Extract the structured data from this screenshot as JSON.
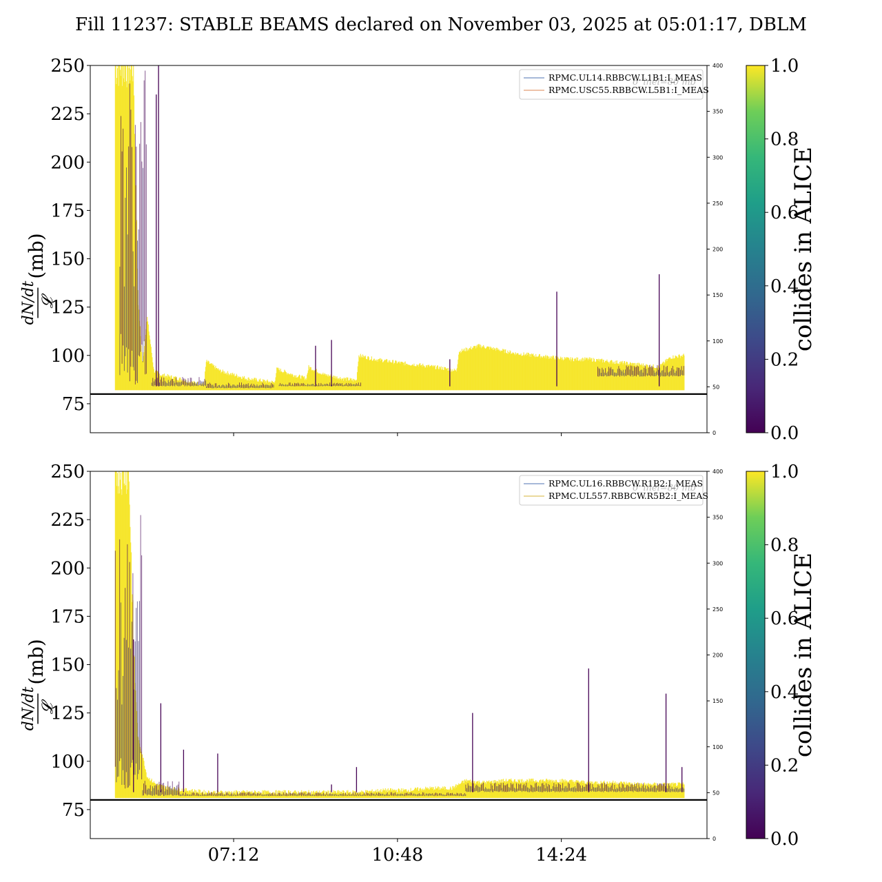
{
  "figure": {
    "title": "Fill 11237: STABLE BEAMS declared on November 03, 2025 at 05:01:17, DBLM"
  },
  "colors": {
    "threshold_line": "#000000",
    "legend_series_1": "#4c72b0",
    "legend_series_2": "#dd8452",
    "viridis": [
      "#440154",
      "#3b528b",
      "#21918c",
      "#5ec962",
      "#fde725"
    ]
  },
  "chart_data": [
    {
      "type": "line",
      "panel": "top",
      "ylabel_fraction_top": "dN/dt",
      "ylabel_fraction_bottom": "𝓛",
      "ylabel_unit": "(mb)",
      "ylim": [
        60,
        250
      ],
      "yticks": [
        75,
        100,
        125,
        150,
        175,
        200,
        225,
        250
      ],
      "ylim_right": [
        0,
        400
      ],
      "yticks_right": [
        0,
        50,
        100,
        150,
        200,
        250,
        300,
        350,
        400
      ],
      "xlim_hours": [
        4.05,
        17.6
      ],
      "xticks": [
        {
          "hour": 7.2,
          "label": "07:12"
        },
        {
          "hour": 10.8,
          "label": "10:48"
        },
        {
          "hour": 14.4,
          "label": "14:24"
        }
      ],
      "show_xtick_labels": false,
      "threshold": 80,
      "legend": [
        "RPMC.UL14.RBBCW.L1B1:I_MEAS",
        "RPMC.USC55.RBBCW.L5B1:I_MEAS"
      ],
      "legend_placement": "top-right",
      "legend_ghost_text": "σ_inel=80 mb",
      "colorbar": {
        "label": "collides in ALICE",
        "range": [
          0.0,
          1.0
        ],
        "ticks": [
          "0.0",
          "0.2",
          "0.4",
          "0.6",
          "0.8",
          "1.0"
        ]
      },
      "envelope": {
        "x": [
          4.6,
          4.7,
          4.8,
          4.9,
          5.0,
          5.1,
          5.2,
          5.3,
          5.45,
          5.6,
          5.8,
          6.0,
          6.3,
          6.55,
          6.6,
          6.9,
          7.2,
          7.5,
          7.8,
          8.1,
          8.15,
          8.5,
          8.8,
          8.85,
          9.2,
          9.6,
          9.9,
          9.95,
          10.3,
          10.6,
          10.9,
          11.3,
          11.6,
          11.9,
          12.1,
          12.15,
          12.6,
          13.0,
          13.4,
          13.8,
          14.2,
          14.6,
          15.0,
          15.4,
          15.8,
          16.2,
          16.55,
          16.8,
          17.1
        ],
        "ymax": [
          250,
          250,
          250,
          250,
          250,
          130,
          95,
          120,
          92,
          90,
          89,
          88,
          86,
          85,
          97,
          92,
          90,
          88,
          87,
          86,
          93,
          90,
          88,
          94,
          90,
          88,
          87,
          100,
          98,
          97,
          96,
          95,
          94,
          93,
          92,
          102,
          105,
          103,
          101,
          100,
          99,
          98,
          98,
          97,
          96,
          95,
          94,
          99,
          100
        ],
        "ymin": [
          82,
          82,
          82,
          82,
          82,
          82,
          82,
          82,
          82,
          82,
          82,
          82,
          82,
          82,
          82,
          82,
          82,
          82,
          82,
          82,
          82,
          82,
          82,
          82,
          82,
          82,
          82,
          82,
          82,
          82,
          82,
          82,
          82,
          82,
          82,
          82,
          82,
          82,
          82,
          82,
          82,
          82,
          82,
          82,
          82,
          82,
          82,
          82,
          82
        ],
        "purple_band": [
          [
            4.7,
            5.3,
            84,
            250
          ],
          [
            5.4,
            6.6,
            84,
            89
          ],
          [
            6.6,
            8.1,
            83,
            86
          ],
          [
            8.2,
            10.0,
            84,
            86
          ],
          [
            15.2,
            17.1,
            89,
            95
          ]
        ]
      },
      "spikes": [
        {
          "x": 5.55,
          "y": 250
        },
        {
          "x": 5.5,
          "y": 235
        },
        {
          "x": 9.0,
          "y": 105
        },
        {
          "x": 9.35,
          "y": 108
        },
        {
          "x": 11.95,
          "y": 98
        },
        {
          "x": 14.3,
          "y": 133
        },
        {
          "x": 16.55,
          "y": 142
        }
      ]
    },
    {
      "type": "line",
      "panel": "bottom",
      "ylabel_fraction_top": "dN/dt",
      "ylabel_fraction_bottom": "𝓛",
      "ylabel_unit": "(mb)",
      "ylim": [
        60,
        250
      ],
      "yticks": [
        75,
        100,
        125,
        150,
        175,
        200,
        225,
        250
      ],
      "ylim_right": [
        0,
        400
      ],
      "yticks_right": [
        0,
        50,
        100,
        150,
        200,
        250,
        300,
        350,
        400
      ],
      "xlim_hours": [
        4.05,
        17.6
      ],
      "xticks": [
        {
          "hour": 7.2,
          "label": "07:12"
        },
        {
          "hour": 10.8,
          "label": "10:48"
        },
        {
          "hour": 14.4,
          "label": "14:24"
        }
      ],
      "show_xtick_labels": true,
      "threshold": 80,
      "legend": [
        "RPMC.UL16.RBBCW.R1B2:I_MEAS",
        "RPMC.UL557.RBBCW.R5B2:I_MEAS"
      ],
      "legend_placement": "top-right",
      "legend_ghost_text": "σ_inel=80 mb",
      "colorbar": {
        "label": "collides in ALICE",
        "range": [
          0.0,
          1.0
        ],
        "ticks": [
          "0.0",
          "0.2",
          "0.4",
          "0.6",
          "0.8",
          "1.0"
        ]
      },
      "envelope": {
        "x": [
          4.6,
          4.7,
          4.8,
          4.9,
          5.0,
          5.1,
          5.2,
          5.3,
          5.5,
          5.8,
          6.2,
          6.6,
          7.0,
          7.5,
          8.0,
          8.5,
          9.0,
          9.5,
          10.0,
          10.5,
          11.0,
          11.5,
          12.0,
          12.3,
          12.7,
          13.2,
          13.8,
          14.4,
          15.0,
          15.6,
          16.2,
          16.8,
          17.1
        ],
        "ymax": [
          250,
          250,
          250,
          250,
          160,
          112,
          103,
          92,
          88,
          86,
          85,
          84,
          84,
          84,
          84,
          84,
          84,
          84,
          84,
          85,
          85,
          86,
          86,
          90,
          89,
          90,
          90,
          90,
          89,
          89,
          88,
          88,
          88
        ],
        "ymin": [
          81,
          81,
          81,
          81,
          81,
          81,
          81,
          81,
          81,
          81,
          81,
          81,
          81,
          81,
          81,
          81,
          81,
          81,
          81,
          81,
          81,
          81,
          81,
          81,
          81,
          81,
          81,
          81,
          81,
          81,
          81,
          81,
          81
        ],
        "purple_band": [
          [
            4.6,
            5.2,
            85,
            230
          ],
          [
            5.2,
            6.0,
            82,
            90
          ],
          [
            6.0,
            12.3,
            82,
            84
          ],
          [
            12.3,
            17.1,
            84,
            89
          ]
        ]
      },
      "spikes": [
        {
          "x": 5.0,
          "y": 163
        },
        {
          "x": 5.6,
          "y": 130
        },
        {
          "x": 6.1,
          "y": 106
        },
        {
          "x": 6.85,
          "y": 104
        },
        {
          "x": 9.35,
          "y": 88
        },
        {
          "x": 9.9,
          "y": 97
        },
        {
          "x": 12.45,
          "y": 125
        },
        {
          "x": 15.0,
          "y": 148
        },
        {
          "x": 16.7,
          "y": 135
        },
        {
          "x": 17.05,
          "y": 97
        }
      ]
    }
  ]
}
